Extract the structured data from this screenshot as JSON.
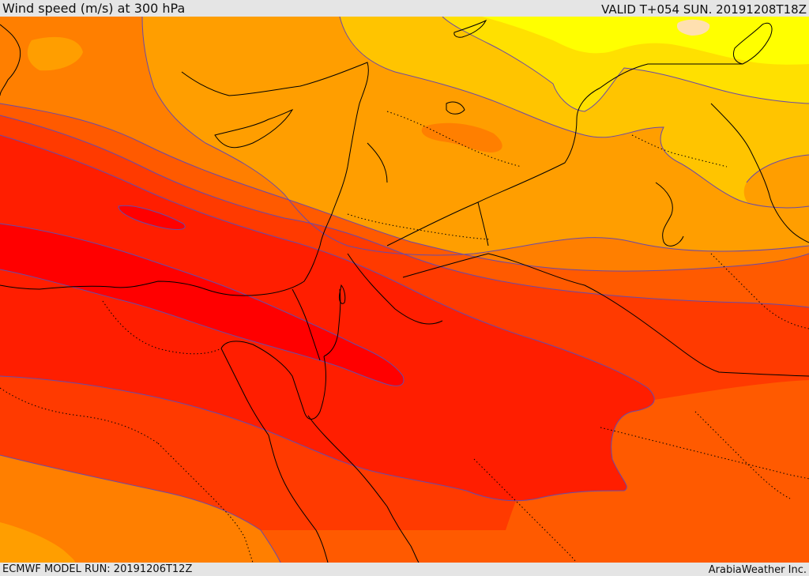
{
  "header": {
    "title": "Wind speed (m/s) at 300 hPa",
    "valid": "VALID T+054 SUN. 20191208T18Z"
  },
  "footer": {
    "model_run": "ECMWF MODEL RUN: 20191206T12Z",
    "credit": "ArabiaWeather Inc."
  },
  "colors": {
    "band_1": "#ffff00",
    "band_2": "#ffe000",
    "band_3": "#ffc400",
    "band_4": "#ff9e00",
    "band_5": "#ff7f00",
    "band_6": "#ff5a00",
    "band_7": "#ff3a00",
    "band_8": "#ff1e00",
    "band_9": "#ff0000",
    "isotach_line": "#6a4aa8",
    "coastline": "#000000",
    "border": "#000000"
  }
}
